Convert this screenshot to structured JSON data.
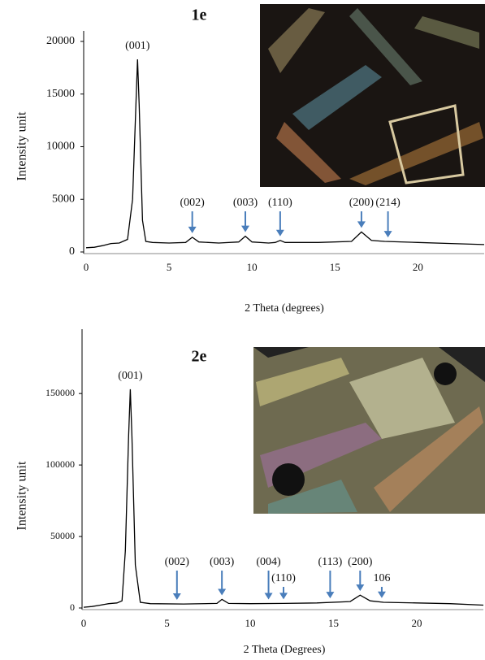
{
  "chart_data": [
    {
      "type": "line",
      "title": "1e",
      "xlabel": "2 Theta (degrees)",
      "ylabel": "Intensity unit",
      "xlim": [
        0,
        24
      ],
      "ylim": [
        0,
        21000
      ],
      "xticks": [
        0,
        5,
        10,
        15,
        20
      ],
      "yticks": [
        0,
        5000,
        10000,
        15000,
        20000
      ],
      "x": [
        0,
        0.5,
        1,
        1.5,
        2,
        2.5,
        2.8,
        3.0,
        3.1,
        3.2,
        3.4,
        3.6,
        4,
        5,
        6,
        6.4,
        6.8,
        8,
        9.2,
        9.6,
        10,
        11,
        11.4,
        11.7,
        12,
        14,
        16,
        16.6,
        17.2,
        18,
        20,
        22,
        24
      ],
      "series": [
        {
          "color": "#000000",
          "values": [
            400,
            450,
            600,
            800,
            850,
            1200,
            5000,
            14000,
            18300,
            14000,
            3000,
            1000,
            900,
            850,
            900,
            1400,
            950,
            850,
            950,
            1500,
            950,
            850,
            900,
            1100,
            900,
            900,
            1000,
            1900,
            1100,
            1000,
            900,
            800,
            700
          ]
        }
      ],
      "annotations": [
        {
          "text": "(001)",
          "x": 3.1,
          "arrow": false
        },
        {
          "text": "(002)",
          "x": 6.4,
          "arrow": true
        },
        {
          "text": "(003)",
          "x": 9.6,
          "arrow": true
        },
        {
          "text": "(110)",
          "x": 11.7,
          "arrow": true
        },
        {
          "text": "(200)",
          "x": 16.6,
          "arrow": true
        },
        {
          "text": "(214)",
          "x": 18.2,
          "arrow": true
        }
      ],
      "grid": false
    },
    {
      "type": "line",
      "title": "2e",
      "xlabel": "2 Theta (Degrees)",
      "ylabel": "Intensity unit",
      "xlim": [
        0,
        24
      ],
      "ylim": [
        0,
        195000
      ],
      "xticks": [
        0,
        5,
        10,
        15,
        20
      ],
      "yticks": [
        0,
        50000,
        100000,
        150000
      ],
      "x": [
        0,
        0.5,
        1,
        1.5,
        2,
        2.3,
        2.5,
        2.7,
        2.8,
        2.9,
        3.1,
        3.4,
        4,
        6,
        8,
        8.3,
        8.7,
        10,
        12,
        14,
        16,
        16.6,
        17.2,
        18,
        20,
        22,
        24
      ],
      "series": [
        {
          "color": "#000000",
          "values": [
            500,
            1000,
            2000,
            3000,
            3500,
            5000,
            40000,
            120000,
            153000,
            120000,
            30000,
            4000,
            3000,
            2800,
            3200,
            6000,
            3200,
            3000,
            3200,
            3500,
            4500,
            9000,
            5000,
            4000,
            3500,
            3000,
            2000
          ]
        }
      ],
      "annotations": [
        {
          "text": "(001)",
          "x": 2.8,
          "arrow": false
        },
        {
          "text": "(002)",
          "x": 5.6,
          "arrow": true
        },
        {
          "text": "(003)",
          "x": 8.3,
          "arrow": true
        },
        {
          "text": "(004)",
          "x": 11.1,
          "arrow": true
        },
        {
          "text": "(110)",
          "x": 12.0,
          "arrow": true
        },
        {
          "text": "(113)",
          "x": 14.8,
          "arrow": true
        },
        {
          "text": "(200)",
          "x": 16.6,
          "arrow": true
        },
        {
          "text": "106",
          "x": 17.9,
          "arrow": true
        }
      ],
      "grid": false
    }
  ]
}
